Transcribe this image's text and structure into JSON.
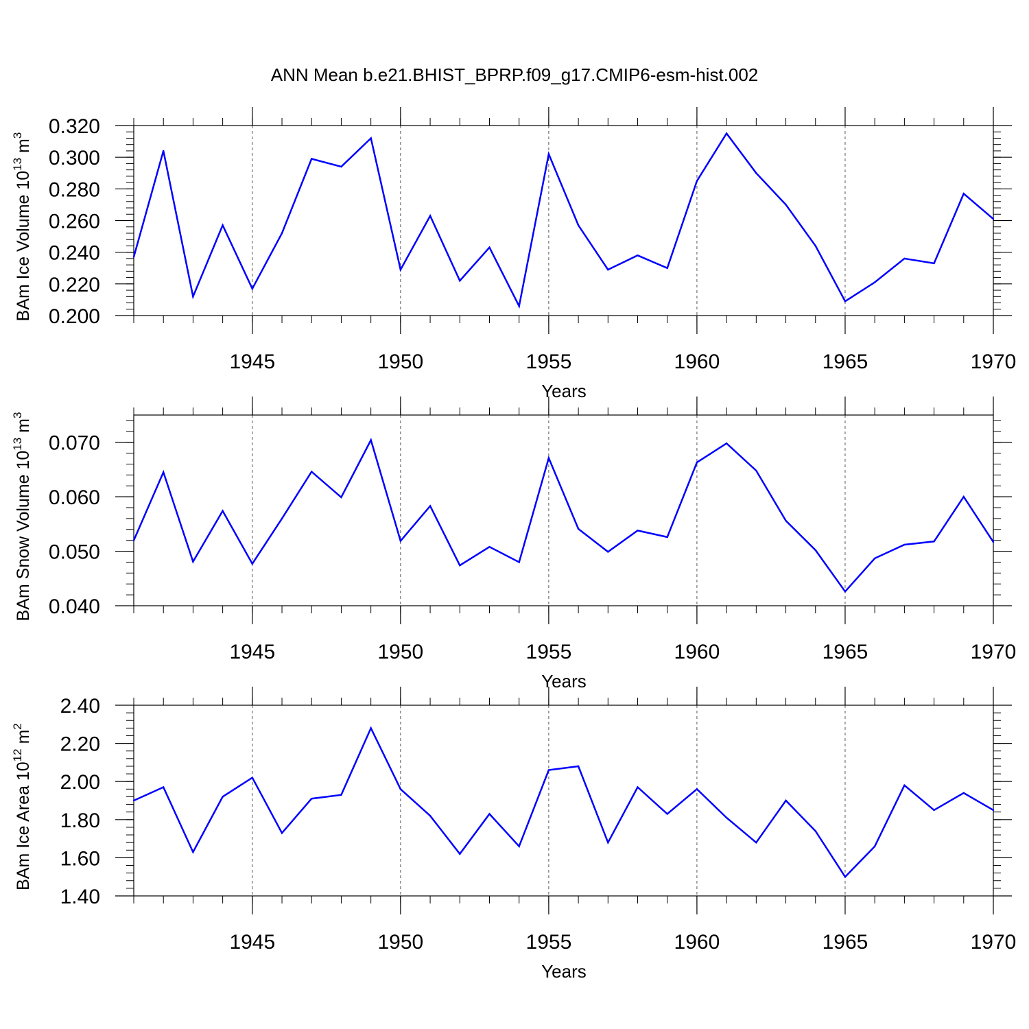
{
  "title": "ANN Mean b.e21.BHIST_BPRP.f09_g17.CMIP6-esm-hist.002",
  "colors": {
    "line": "#0000ff",
    "axis": "#000000",
    "grid": "#555555"
  },
  "chart_data": [
    {
      "type": "line",
      "xlabel": "Years",
      "ylabel": {
        "text": "BAm Ice Volume 10",
        "exp": "13",
        "unit": " m",
        "unit_exp": "3"
      },
      "xlim": [
        1941,
        1970
      ],
      "ylim": [
        0.2,
        0.32
      ],
      "yticks": [
        "0.200",
        "0.220",
        "0.240",
        "0.260",
        "0.280",
        "0.300",
        "0.320"
      ],
      "ytick_values": [
        0.2,
        0.22,
        0.24,
        0.26,
        0.28,
        0.3,
        0.32
      ],
      "xticks": [
        "1945",
        "1950",
        "1955",
        "1960",
        "1965",
        "1970"
      ],
      "xtick_values": [
        1945,
        1950,
        1955,
        1960,
        1965,
        1970
      ],
      "grid": "dashed vertical at major x ticks",
      "x": [
        1941,
        1942,
        1943,
        1944,
        1945,
        1946,
        1947,
        1948,
        1949,
        1950,
        1951,
        1952,
        1953,
        1954,
        1955,
        1956,
        1957,
        1958,
        1959,
        1960,
        1961,
        1962,
        1963,
        1964,
        1965,
        1966,
        1967,
        1968,
        1969,
        1970
      ],
      "values": [
        0.237,
        0.304,
        0.212,
        0.257,
        0.217,
        0.252,
        0.299,
        0.294,
        0.312,
        0.229,
        0.263,
        0.222,
        0.243,
        0.206,
        0.302,
        0.257,
        0.229,
        0.238,
        0.23,
        0.285,
        0.315,
        0.29,
        0.27,
        0.244,
        0.209,
        0.221,
        0.236,
        0.233,
        0.277,
        0.261
      ]
    },
    {
      "type": "line",
      "xlabel": "Years",
      "ylabel": {
        "text": "BAm Snow Volume 10",
        "exp": "13",
        "unit": " m",
        "unit_exp": "3"
      },
      "xlim": [
        1941,
        1970
      ],
      "ylim": [
        0.04,
        0.075
      ],
      "yticks": [
        "0.040",
        "0.050",
        "0.060",
        "0.070"
      ],
      "ytick_values": [
        0.04,
        0.05,
        0.06,
        0.07
      ],
      "xticks": [
        "1945",
        "1950",
        "1955",
        "1960",
        "1965",
        "1970"
      ],
      "xtick_values": [
        1945,
        1950,
        1955,
        1960,
        1965,
        1970
      ],
      "grid": "dashed vertical at major x ticks",
      "x": [
        1941,
        1942,
        1943,
        1944,
        1945,
        1946,
        1947,
        1948,
        1949,
        1950,
        1951,
        1952,
        1953,
        1954,
        1955,
        1956,
        1957,
        1958,
        1959,
        1960,
        1961,
        1962,
        1963,
        1964,
        1965,
        1966,
        1967,
        1968,
        1969,
        1970
      ],
      "values": [
        0.052,
        0.0645,
        0.0481,
        0.0574,
        0.0477,
        0.056,
        0.0646,
        0.0599,
        0.0704,
        0.0519,
        0.0583,
        0.0474,
        0.0508,
        0.048,
        0.0671,
        0.0541,
        0.0499,
        0.0538,
        0.0526,
        0.0663,
        0.0698,
        0.0648,
        0.0556,
        0.0502,
        0.0426,
        0.0487,
        0.0512,
        0.0518,
        0.06,
        0.0517
      ]
    },
    {
      "type": "line",
      "xlabel": "Years",
      "ylabel": {
        "text": "BAm Ice Area 10",
        "exp": "12",
        "unit": " m",
        "unit_exp": "2"
      },
      "xlim": [
        1941,
        1970
      ],
      "ylim": [
        1.4,
        2.4
      ],
      "yticks": [
        "1.40",
        "1.60",
        "1.80",
        "2.00",
        "2.20",
        "2.40"
      ],
      "ytick_values": [
        1.4,
        1.6,
        1.8,
        2.0,
        2.2,
        2.4
      ],
      "xticks": [
        "1945",
        "1950",
        "1955",
        "1960",
        "1965",
        "1970"
      ],
      "xtick_values": [
        1945,
        1950,
        1955,
        1960,
        1965,
        1970
      ],
      "grid": "dashed vertical at major x ticks",
      "x": [
        1941,
        1942,
        1943,
        1944,
        1945,
        1946,
        1947,
        1948,
        1949,
        1950,
        1951,
        1952,
        1953,
        1954,
        1955,
        1956,
        1957,
        1958,
        1959,
        1960,
        1961,
        1962,
        1963,
        1964,
        1965,
        1966,
        1967,
        1968,
        1969,
        1970
      ],
      "values": [
        1.9,
        1.97,
        1.63,
        1.92,
        2.02,
        1.73,
        1.91,
        1.93,
        2.28,
        1.96,
        1.82,
        1.62,
        1.83,
        1.66,
        2.06,
        2.08,
        1.68,
        1.97,
        1.83,
        1.96,
        1.81,
        1.68,
        1.9,
        1.74,
        1.5,
        1.66,
        1.98,
        1.85,
        1.94,
        1.85
      ]
    }
  ]
}
